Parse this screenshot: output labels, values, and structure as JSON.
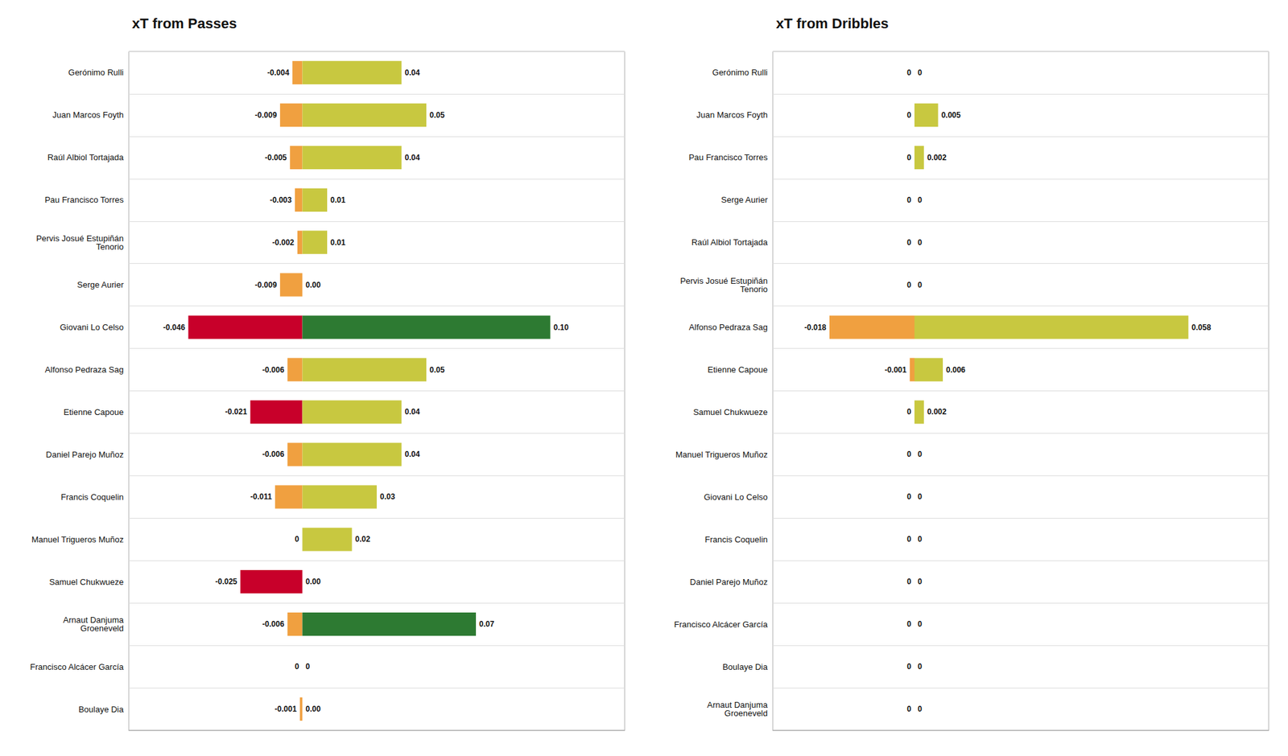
{
  "chart_data": [
    {
      "type": "bar",
      "orientation": "horizontal",
      "title": "xT from Passes",
      "categories": [
        "Gerónimo Rulli",
        "Juan Marcos Foyth",
        "Raúl Albiol Tortajada",
        "Pau Francisco Torres",
        "Pervis Josué Estupiñán\nTenorio",
        "Serge Aurier",
        "Giovani Lo Celso",
        "Alfonso Pedraza Sag",
        "Etienne Capoue",
        "Daniel Parejo Muñoz",
        "Francis Coquelin",
        "Manuel Trigueros Muñoz",
        "Samuel Chukwueze",
        "Arnaut Danjuma\nGroeneveld",
        "Francisco Alcácer García",
        "Boulaye Dia"
      ],
      "xlim": [
        -0.07,
        0.13
      ],
      "tick_labels": "y",
      "grid": true,
      "data_labels": true,
      "series": [
        {
          "values": [
            -0.004,
            -0.009,
            -0.005,
            -0.003,
            -0.002,
            -0.009,
            -0.046,
            -0.006,
            -0.021,
            -0.006,
            -0.011,
            0,
            -0.025,
            -0.006,
            0,
            -0.001
          ],
          "value_labels": [
            "-0.004",
            "-0.009",
            "-0.005",
            "-0.003",
            "-0.002",
            "-0.009",
            "-0.046",
            "-0.006",
            "-0.021",
            "-0.006",
            "-0.011",
            "0",
            "-0.025",
            "-0.006",
            "0",
            "-0.001"
          ],
          "colors": [
            "#F0A040",
            "#F0A040",
            "#F0A040",
            "#F0A040",
            "#F0A040",
            "#F0A040",
            "#C8002A",
            "#F0A040",
            "#C8002A",
            "#F0A040",
            "#F0A040",
            "#F0A040",
            "#C8002A",
            "#F0A040",
            "#F0A040",
            "#F0A040"
          ]
        },
        {
          "values": [
            0.04,
            0.05,
            0.04,
            0.01,
            0.01,
            0,
            0.1,
            0.05,
            0.04,
            0.04,
            0.03,
            0.02,
            0,
            0.07,
            0,
            0
          ],
          "value_labels": [
            "0.04",
            "0.05",
            "0.04",
            "0.01",
            "0.01",
            "0.00",
            "0.10",
            "0.05",
            "0.04",
            "0.04",
            "0.03",
            "0.02",
            "0.00",
            "0.07",
            "0",
            "0.00"
          ],
          "colors": [
            "#C8C840",
            "#C8C840",
            "#C8C840",
            "#C8C840",
            "#C8C840",
            "#C8C840",
            "#2D7A32",
            "#C8C840",
            "#C8C840",
            "#C8C840",
            "#C8C840",
            "#C8C840",
            "#C8C840",
            "#2D7A32",
            "#C8C840",
            "#C8C840"
          ]
        }
      ]
    },
    {
      "type": "bar",
      "orientation": "horizontal",
      "title": "xT from Dribbles",
      "categories": [
        "Gerónimo Rulli",
        "Juan Marcos Foyth",
        "Pau Francisco Torres",
        "Serge Aurier",
        "Raúl Albiol Tortajada",
        "Pervis Josué Estupiñán\nTenorio",
        "Alfonso Pedraza Sag",
        "Etienne Capoue",
        "Samuel Chukwueze",
        "Manuel Trigueros Muñoz",
        "Giovani Lo Celso",
        "Francis Coquelin",
        "Daniel Parejo Muñoz",
        "Francisco Alcácer García",
        "Boulaye Dia",
        "Arnaut Danjuma\nGroeneveld"
      ],
      "xlim": [
        -0.03,
        0.075
      ],
      "tick_labels": "y",
      "grid": true,
      "data_labels": true,
      "series": [
        {
          "values": [
            0,
            0,
            0,
            0,
            0,
            0,
            -0.018,
            -0.001,
            0,
            0,
            0,
            0,
            0,
            0,
            0,
            0
          ],
          "value_labels": [
            "0",
            "0",
            "0",
            "0",
            "0",
            "0",
            "-0.018",
            "-0.001",
            "0",
            "0",
            "0",
            "0",
            "0",
            "0",
            "0",
            "0"
          ],
          "colors": [
            "#F0A040",
            "#F0A040",
            "#F0A040",
            "#F0A040",
            "#F0A040",
            "#F0A040",
            "#F0A040",
            "#F0A040",
            "#F0A040",
            "#F0A040",
            "#F0A040",
            "#F0A040",
            "#F0A040",
            "#F0A040",
            "#F0A040",
            "#F0A040"
          ]
        },
        {
          "values": [
            0,
            0.005,
            0.002,
            0,
            0,
            0,
            0.058,
            0.006,
            0.002,
            0,
            0,
            0,
            0,
            0,
            0,
            0
          ],
          "value_labels": [
            "0",
            "0.005",
            "0.002",
            "0",
            "0",
            "0",
            "0.058",
            "0.006",
            "0.002",
            "0",
            "0",
            "0",
            "0",
            "0",
            "0",
            "0"
          ],
          "colors": [
            "#C8C840",
            "#C8C840",
            "#C8C840",
            "#C8C840",
            "#C8C840",
            "#C8C840",
            "#C8C840",
            "#C8C840",
            "#C8C840",
            "#C8C840",
            "#C8C840",
            "#C8C840",
            "#C8C840",
            "#C8C840",
            "#C8C840",
            "#C8C840"
          ]
        }
      ]
    }
  ]
}
